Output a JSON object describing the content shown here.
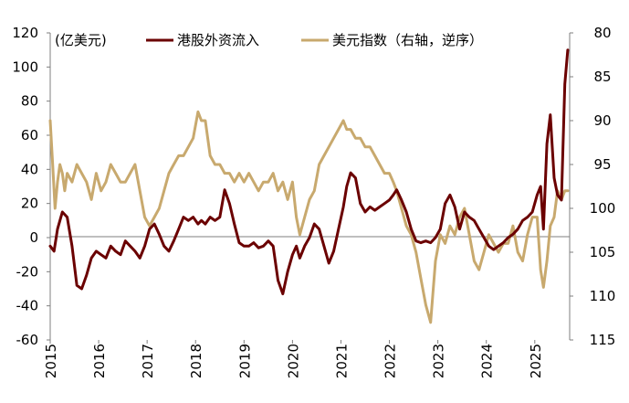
{
  "chart_data": {
    "type": "line",
    "unit_label": "(亿美元)",
    "x_ticks": [
      "2015",
      "2016",
      "2017",
      "2018",
      "2019",
      "2020",
      "2021",
      "2022",
      "2023",
      "2024",
      "2025"
    ],
    "left_axis": {
      "ylim": [
        -60,
        120
      ],
      "ticks": [
        "120",
        "100",
        "80",
        "60",
        "40",
        "20",
        "0",
        "-20",
        "-40",
        "-60"
      ]
    },
    "right_axis": {
      "ylim": [
        80,
        115
      ],
      "inverted": true,
      "ticks": [
        "80",
        "85",
        "90",
        "95",
        "100",
        "105",
        "110",
        "115"
      ]
    },
    "series": [
      {
        "name": "港股外资流入",
        "color": "#6b0000",
        "axis": "left",
        "x": [
          2015.0,
          2015.08,
          2015.15,
          2015.25,
          2015.35,
          2015.45,
          2015.55,
          2015.65,
          2015.75,
          2015.85,
          2015.95,
          2016.05,
          2016.15,
          2016.25,
          2016.35,
          2016.45,
          2016.55,
          2016.65,
          2016.75,
          2016.85,
          2016.95,
          2017.05,
          2017.15,
          2017.25,
          2017.35,
          2017.45,
          2017.55,
          2017.65,
          2017.75,
          2017.85,
          2017.95,
          2018.05,
          2018.12,
          2018.2,
          2018.3,
          2018.4,
          2018.5,
          2018.6,
          2018.7,
          2018.8,
          2018.9,
          2019.0,
          2019.1,
          2019.2,
          2019.3,
          2019.4,
          2019.5,
          2019.6,
          2019.7,
          2019.8,
          2019.9,
          2020.0,
          2020.08,
          2020.15,
          2020.25,
          2020.35,
          2020.45,
          2020.55,
          2020.65,
          2020.75,
          2020.85,
          2020.95,
          2021.05,
          2021.12,
          2021.2,
          2021.3,
          2021.4,
          2021.5,
          2021.6,
          2021.7,
          2021.8,
          2021.9,
          2022.0,
          2022.08,
          2022.15,
          2022.25,
          2022.35,
          2022.45,
          2022.55,
          2022.65,
          2022.75,
          2022.85,
          2022.95,
          2023.05,
          2023.15,
          2023.25,
          2023.35,
          2023.45,
          2023.55,
          2023.65,
          2023.75,
          2023.85,
          2023.95,
          2024.05,
          2024.15,
          2024.25,
          2024.35,
          2024.45,
          2024.55,
          2024.65,
          2024.75,
          2024.85,
          2024.95,
          2025.05,
          2025.12,
          2025.18,
          2025.25,
          2025.32,
          2025.4,
          2025.47,
          2025.55,
          2025.62,
          2025.68
        ],
        "values": [
          -5,
          -8,
          5,
          15,
          12,
          -5,
          -28,
          -30,
          -22,
          -12,
          -8,
          -10,
          -12,
          -5,
          -8,
          -10,
          -2,
          -5,
          -8,
          -12,
          -5,
          5,
          8,
          2,
          -5,
          -8,
          -2,
          5,
          12,
          10,
          12,
          8,
          10,
          8,
          12,
          10,
          12,
          28,
          20,
          8,
          -3,
          -5,
          -5,
          -3,
          -6,
          -5,
          -2,
          -5,
          -25,
          -33,
          -20,
          -10,
          -5,
          -12,
          -5,
          0,
          8,
          5,
          -5,
          -15,
          -8,
          5,
          18,
          30,
          38,
          35,
          20,
          15,
          18,
          16,
          18,
          20,
          22,
          25,
          28,
          22,
          15,
          5,
          -2,
          -3,
          -2,
          -3,
          0,
          5,
          20,
          25,
          18,
          5,
          15,
          12,
          10,
          5,
          0,
          -5,
          -7,
          -5,
          -3,
          0,
          2,
          5,
          10,
          12,
          15,
          25,
          30,
          5,
          55,
          72,
          35,
          25,
          22,
          90,
          110
        ]
      },
      {
        "name": "美元指数（右轴，逆序）",
        "color": "#c8a96e",
        "axis": "right",
        "x": [
          2015.0,
          2015.05,
          2015.1,
          2015.15,
          2015.2,
          2015.25,
          2015.3,
          2015.35,
          2015.45,
          2015.55,
          2015.65,
          2015.75,
          2015.85,
          2015.95,
          2016.05,
          2016.15,
          2016.25,
          2016.35,
          2016.45,
          2016.55,
          2016.65,
          2016.75,
          2016.85,
          2016.95,
          2017.05,
          2017.15,
          2017.25,
          2017.35,
          2017.45,
          2017.55,
          2017.65,
          2017.75,
          2017.85,
          2017.95,
          2018.05,
          2018.12,
          2018.2,
          2018.3,
          2018.4,
          2018.5,
          2018.6,
          2018.7,
          2018.8,
          2018.9,
          2019.0,
          2019.1,
          2019.2,
          2019.3,
          2019.4,
          2019.5,
          2019.6,
          2019.7,
          2019.8,
          2019.9,
          2020.0,
          2020.08,
          2020.15,
          2020.25,
          2020.35,
          2020.45,
          2020.55,
          2020.65,
          2020.75,
          2020.85,
          2020.95,
          2021.05,
          2021.12,
          2021.2,
          2021.3,
          2021.4,
          2021.5,
          2021.6,
          2021.7,
          2021.8,
          2021.9,
          2022.0,
          2022.08,
          2022.15,
          2022.25,
          2022.35,
          2022.45,
          2022.55,
          2022.65,
          2022.75,
          2022.85,
          2022.95,
          2023.05,
          2023.15,
          2023.25,
          2023.35,
          2023.45,
          2023.55,
          2023.65,
          2023.75,
          2023.85,
          2023.95,
          2024.05,
          2024.15,
          2024.25,
          2024.35,
          2024.45,
          2024.55,
          2024.65,
          2024.75,
          2024.85,
          2024.95,
          2025.05,
          2025.12,
          2025.18,
          2025.25,
          2025.32,
          2025.4,
          2025.47,
          2025.55,
          2025.62,
          2025.68
        ],
        "values": [
          90,
          95,
          100,
          97,
          95,
          96,
          98,
          96,
          97,
          95,
          96,
          97,
          99,
          96,
          98,
          97,
          95,
          96,
          97,
          97,
          96,
          95,
          98,
          101,
          102,
          101,
          100,
          98,
          96,
          95,
          94,
          94,
          93,
          92,
          89,
          90,
          90,
          94,
          95,
          95,
          96,
          96,
          97,
          96,
          97,
          96,
          97,
          98,
          97,
          97,
          96,
          98,
          97,
          99,
          97,
          101,
          103,
          101,
          99,
          98,
          95,
          94,
          93,
          92,
          91,
          90,
          91,
          91,
          92,
          92,
          93,
          93,
          94,
          95,
          96,
          96,
          97,
          98,
          100,
          102,
          103,
          105,
          108,
          111,
          113,
          106,
          103,
          104,
          102,
          103,
          101,
          100,
          103,
          106,
          107,
          105,
          103,
          104,
          105,
          104,
          104,
          102,
          105,
          106,
          103,
          101,
          101,
          107,
          109,
          106,
          102,
          101,
          98,
          99,
          98,
          98
        ]
      }
    ]
  }
}
